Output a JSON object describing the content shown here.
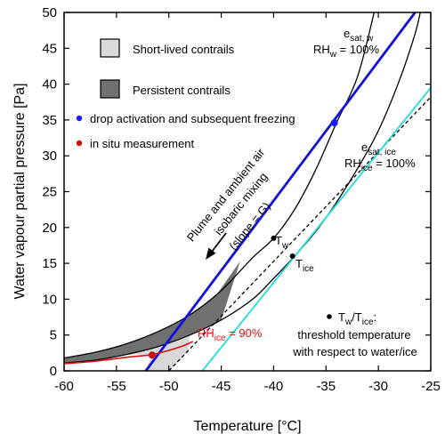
{
  "chart_data": {
    "type": "line",
    "xlabel": "Temperature [°C]",
    "ylabel": "Water vapour partial pressure [Pa]",
    "xlim": [
      -60,
      -25
    ],
    "ylim": [
      0,
      50
    ],
    "x_ticks": [
      -60,
      -55,
      -50,
      -45,
      -40,
      -35,
      -30,
      -25
    ],
    "y_ticks": [
      0,
      5,
      10,
      15,
      20,
      25,
      30,
      35,
      40,
      45,
      50
    ],
    "grid": false,
    "legend_position": "top-left",
    "legend": {
      "short_lived": "Short-lived contrails",
      "persistent": "Persistent contrails",
      "drop": "drop activation and subsequent freezing",
      "insitu": "in situ measurement"
    },
    "colors": {
      "mixing_line": "#1010e0",
      "ice_line": "#22dddd",
      "rh_curve": "#e01010",
      "short_lived_fill": "#d9d9d9",
      "persistent_fill": "#707070",
      "drop_point": "#1a1aff",
      "insitu_point": "#cc1111"
    },
    "series": [
      {
        "key": "esat_w",
        "color": "#000000",
        "style": "solid",
        "points": [
          [
            -60,
            1.8
          ],
          [
            -57,
            2.6
          ],
          [
            -54,
            3.8
          ],
          [
            -51,
            5.5
          ],
          [
            -48,
            7.8
          ],
          [
            -45,
            11.2
          ],
          [
            -42,
            15.8
          ],
          [
            -40,
            18.5
          ],
          [
            -38,
            22.5
          ],
          [
            -36,
            28
          ],
          [
            -34,
            34.6
          ],
          [
            -32,
            41
          ],
          [
            -30.4,
            50
          ]
        ]
      },
      {
        "key": "esat_ice",
        "color": "#000000",
        "style": "solid",
        "points": [
          [
            -60,
            1.1
          ],
          [
            -57,
            1.5
          ],
          [
            -54,
            2.3
          ],
          [
            -51,
            3.4
          ],
          [
            -48,
            5.0
          ],
          [
            -45,
            7.1
          ],
          [
            -42,
            10.0
          ],
          [
            -40,
            12.9
          ],
          [
            -38,
            16.0
          ],
          [
            -36,
            19.4
          ],
          [
            -34,
            23.5
          ],
          [
            -32,
            28.2
          ],
          [
            -30,
            33.5
          ],
          [
            -28,
            40.5
          ],
          [
            -26.5,
            47
          ],
          [
            -26,
            50
          ]
        ]
      },
      {
        "key": "mixing_line",
        "name": "slope = G",
        "color": "#1010e0",
        "style": "solid",
        "points": [
          [
            -52.2,
            0
          ],
          [
            -26.5,
            50
          ]
        ]
      },
      {
        "key": "dashed_line",
        "color": "#000000",
        "style": "dashed",
        "points": [
          [
            -50,
            0
          ],
          [
            -25,
            38.2
          ]
        ]
      },
      {
        "key": "ice_line",
        "color": "#22dddd",
        "style": "solid",
        "points": [
          [
            -46.8,
            0
          ],
          [
            -25,
            39.5
          ]
        ]
      },
      {
        "key": "rh_ice_90",
        "name": "RHice = 90%",
        "color": "#e01010",
        "style": "solid",
        "points": [
          [
            -60,
            1.0
          ],
          [
            -57,
            1.35
          ],
          [
            -54,
            1.9
          ],
          [
            -51.5,
            2.3
          ],
          [
            -49,
            3.3
          ],
          [
            -47.7,
            4.1
          ]
        ]
      }
    ],
    "regions": [
      {
        "key": "short_lived",
        "polygon": [
          [
            -60,
            1.1
          ],
          [
            -57,
            1.5
          ],
          [
            -54,
            2.3
          ],
          [
            -51.6,
            2.3
          ],
          [
            -52.2,
            0
          ],
          [
            -50,
            0
          ],
          [
            -48.2,
            2.6
          ],
          [
            -48,
            5.0
          ],
          [
            -51,
            3.4
          ],
          [
            -54,
            2.3
          ],
          [
            -57,
            1.5
          ],
          [
            -60,
            1.1
          ]
        ]
      },
      {
        "key": "persistent",
        "polygon": [
          [
            -60,
            1.8
          ],
          [
            -57,
            2.6
          ],
          [
            -54,
            3.8
          ],
          [
            -51,
            5.5
          ],
          [
            -48,
            7.8
          ],
          [
            -45.5,
            10.5
          ],
          [
            -43.2,
            15.3
          ],
          [
            -45,
            7.1
          ],
          [
            -48,
            5.0
          ],
          [
            -51,
            3.4
          ],
          [
            -54,
            2.3
          ],
          [
            -57,
            1.5
          ],
          [
            -60,
            1.1
          ]
        ]
      }
    ],
    "points": [
      {
        "key": "drop",
        "x": -34.2,
        "y": 34.6,
        "color": "#1a1aff"
      },
      {
        "key": "insitu",
        "x": -51.6,
        "y": 2.2,
        "color": "#cc1111"
      },
      {
        "key": "t_w",
        "x": -40,
        "y": 18.5,
        "color": "#000000"
      },
      {
        "key": "t_ice",
        "x": -38.2,
        "y": 16.0,
        "color": "#000000"
      }
    ],
    "annotations": {
      "esat_w_label": "e",
      "esat_w_sub": "sat, w",
      "rh_w_label": "RH",
      "rh_w_sub": "w",
      "rh_w_value": " = 100%",
      "esat_ice_label": "e",
      "esat_ice_sub": "sat, ice",
      "rh_ice_label": "RH",
      "rh_ice_sub": "ice",
      "rh_ice_value": " = 100%",
      "rh_ice90_label": "RH",
      "rh_ice90_sub": "ice",
      "rh_ice90_value": " = 90%",
      "plume_line1": "Plume and ambient air",
      "plume_line2": "isobaric mixing",
      "slope_label": "(slope = G)",
      "tw_label": "T",
      "tw_sub": "w",
      "tice_label": "T",
      "tice_sub": "ice",
      "threshold_line1_a": "T",
      "threshold_line1_b": "w",
      "threshold_line1_c": "/T",
      "threshold_line1_d": "ice",
      "threshold_line1_e": ":",
      "threshold_line2": "threshold temperature",
      "threshold_line3": "with respect to water/ice"
    }
  }
}
